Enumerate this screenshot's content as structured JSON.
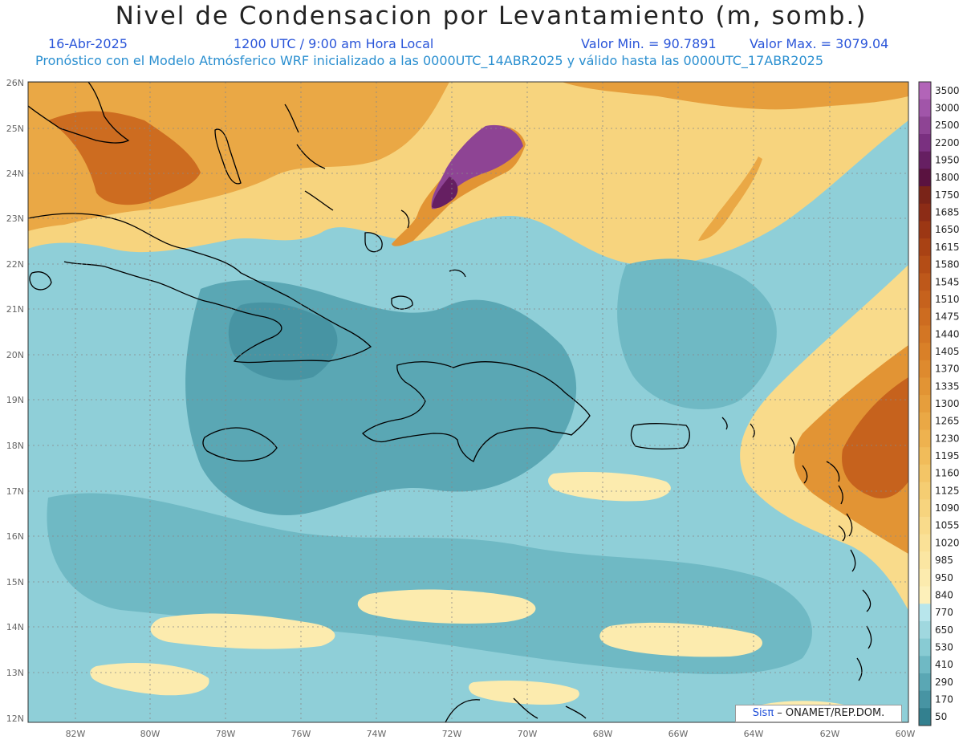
{
  "header": {
    "title": "Nivel de Condensacion por Levantamiento (m, somb.)",
    "date": "16-Abr-2025",
    "time": "1200 UTC / 9:00 am Hora Local",
    "min_label": "Valor Min. = 90.7891",
    "max_label": "Valor Max. = 3079.04",
    "forecast": "Pronóstico con el Modelo Atmósferico WRF inicializado a las 0000UTC_14ABR2025 y válido hasta las  0000UTC_17ABR2025"
  },
  "map": {
    "lat_labels": [
      "26N",
      "25N",
      "24N",
      "23N",
      "22N",
      "21N",
      "20N",
      "19N",
      "18N",
      "17N",
      "16N",
      "15N",
      "14N",
      "13N",
      "12N"
    ],
    "lon_labels": [
      "82W",
      "80W",
      "78W",
      "76W",
      "74W",
      "72W",
      "70W",
      "68W",
      "66W",
      "64W",
      "62W",
      "60W"
    ],
    "gridline_color": "#888888",
    "land_outline_color": "#000000"
  },
  "colorbar": {
    "levels": [
      {
        "label": "3500",
        "color": "#b264b8"
      },
      {
        "label": "3000",
        "color": "#a155a9"
      },
      {
        "label": "2500",
        "color": "#8e4494"
      },
      {
        "label": "2200",
        "color": "#7a3080"
      },
      {
        "label": "1950",
        "color": "#661f62"
      },
      {
        "label": "1800",
        "color": "#5a1240"
      },
      {
        "label": "1750",
        "color": "#7a2418"
      },
      {
        "label": "1685",
        "color": "#8c2c16"
      },
      {
        "label": "1650",
        "color": "#9c3714"
      },
      {
        "label": "1615",
        "color": "#a94214"
      },
      {
        "label": "1580",
        "color": "#b44d16"
      },
      {
        "label": "1545",
        "color": "#be581a"
      },
      {
        "label": "1510",
        "color": "#c6621d"
      },
      {
        "label": "1475",
        "color": "#cd6c20"
      },
      {
        "label": "1440",
        "color": "#d37624"
      },
      {
        "label": "1405",
        "color": "#d98028"
      },
      {
        "label": "1370",
        "color": "#de8a2e"
      },
      {
        "label": "1335",
        "color": "#e29434"
      },
      {
        "label": "1300",
        "color": "#e69e3c"
      },
      {
        "label": "1265",
        "color": "#eaa845"
      },
      {
        "label": "1230",
        "color": "#eeb24f"
      },
      {
        "label": "1195",
        "color": "#f1bc5a"
      },
      {
        "label": "1160",
        "color": "#f3c566"
      },
      {
        "label": "1125",
        "color": "#f5cd72"
      },
      {
        "label": "1090",
        "color": "#f7d47e"
      },
      {
        "label": "1055",
        "color": "#f9db8b"
      },
      {
        "label": "1020",
        "color": "#fae197"
      },
      {
        "label": "985",
        "color": "#fbe6a2"
      },
      {
        "label": "950",
        "color": "#fcebae"
      },
      {
        "label": "840",
        "color": "#fdf0ba"
      },
      {
        "label": "770",
        "color": "#b8e6ec"
      },
      {
        "label": "650",
        "color": "#a0d8df"
      },
      {
        "label": "530",
        "color": "#88cbd3"
      },
      {
        "label": "410",
        "color": "#6fb9c4"
      },
      {
        "label": "290",
        "color": "#5aa7b4"
      },
      {
        "label": "170",
        "color": "#4794a3"
      },
      {
        "label": "50",
        "color": "#33808f"
      }
    ]
  },
  "credit": {
    "brand": "Sisπ",
    "text": " – ONAMET/REP.DOM."
  }
}
